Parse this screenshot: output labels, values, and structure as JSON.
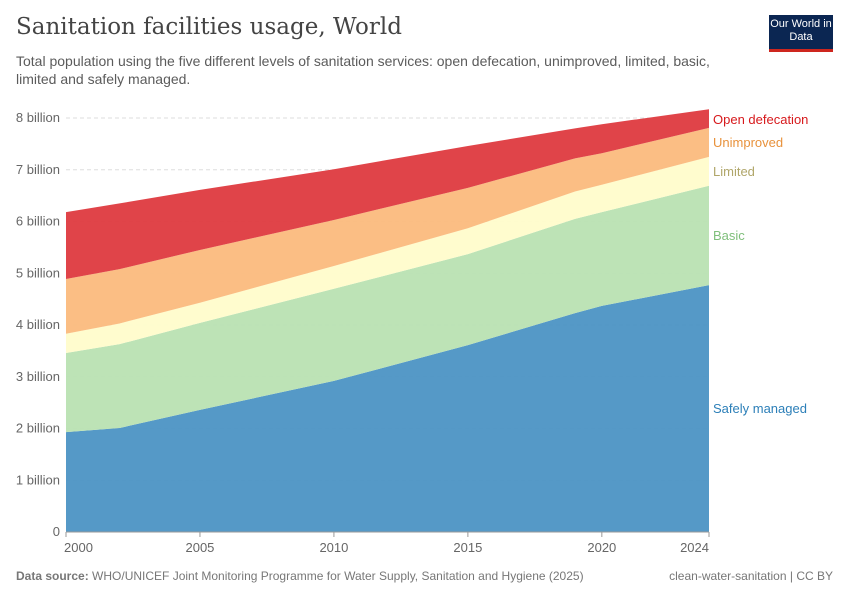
{
  "header": {
    "title": "Sanitation facilities usage, World",
    "subtitle": "Total population using the five different levels of sanitation services: open defecation, unimproved, limited, basic, limited and safely managed.",
    "logo": "Our World in Data"
  },
  "footer": {
    "source_label": "Data source:",
    "source": "WHO/UNICEF Joint Monitoring Programme for Water Supply, Sanitation and Hygiene (2025)",
    "license": "clean-water-sanitation | CC BY"
  },
  "chart_data": {
    "type": "area",
    "stacked": true,
    "x": [
      2000,
      2002,
      2005,
      2010,
      2015,
      2019,
      2020,
      2024
    ],
    "xlim": [
      2000,
      2024
    ],
    "ylim": [
      0,
      8000000000
    ],
    "x_ticks": [
      "2000",
      "2005",
      "2010",
      "2015",
      "2020",
      "2024"
    ],
    "y_ticks": [
      "0",
      "1 billion",
      "2 billion",
      "3 billion",
      "4 billion",
      "5 billion",
      "6 billion",
      "7 billion",
      "8 billion"
    ],
    "grid": "horizontal dashed",
    "legend": "right (inline labels)",
    "series": [
      {
        "name": "Safely managed",
        "color": "#4c94c4",
        "values": [
          1930000000.0,
          2010000000.0,
          2360000000.0,
          2920000000.0,
          3610000000.0,
          4230000000.0,
          4370000000.0,
          4770000000.0
        ]
      },
      {
        "name": "Basic",
        "color": "#b9e2b2",
        "values": [
          1530000000.0,
          1620000000.0,
          1680000000.0,
          1780000000.0,
          1760000000.0,
          1820000000.0,
          1810000000.0,
          1920000000.0
        ]
      },
      {
        "name": "Limited",
        "color": "#fffccb",
        "values": [
          370000000.0,
          400000000.0,
          390000000.0,
          440000000.0,
          500000000.0,
          530000000.0,
          530000000.0,
          560000000.0
        ]
      },
      {
        "name": "Unimproved",
        "color": "#fbba7d",
        "values": [
          1060000000.0,
          1050000000.0,
          1020000000.0,
          890000000.0,
          780000000.0,
          640000000.0,
          610000000.0,
          560000000.0
        ]
      },
      {
        "name": "Open defecation",
        "color": "#de3a3f",
        "values": [
          1290000000.0,
          1270000000.0,
          1160000000.0,
          980000000.0,
          810000000.0,
          580000000.0,
          560000000.0,
          360000000.0
        ]
      }
    ],
    "label_colors": [
      "#2c7fb8",
      "#7fbf7b",
      "#b0a66a",
      "#e8923c",
      "#d7191c"
    ]
  }
}
